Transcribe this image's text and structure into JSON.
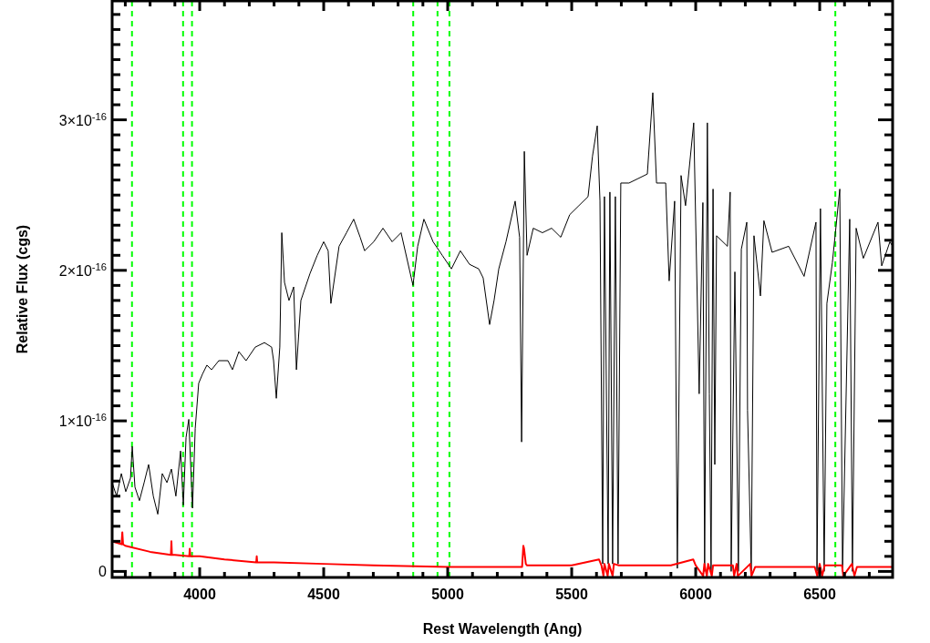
{
  "chart_data": {
    "type": "line",
    "xlabel": "Rest Wavelength (Ang)",
    "ylabel": "Relative Flux (cgs)",
    "xlim": [
      3647,
      6794
    ],
    "ylim": [
      -4e-18,
      3.79e-16
    ],
    "xticks": [
      {
        "value": 3700,
        "label": null
      },
      {
        "value": 3800,
        "label": null
      },
      {
        "value": 3900,
        "label": null
      },
      4000,
      {
        "value": 4100,
        "label": null
      },
      {
        "value": 4200,
        "label": null
      },
      {
        "value": 4300,
        "label": null
      },
      {
        "value": 4400,
        "label": null
      },
      4500,
      {
        "value": 4600,
        "label": null
      },
      {
        "value": 4700,
        "label": null
      },
      {
        "value": 4800,
        "label": null
      },
      {
        "value": 4900,
        "label": null
      },
      5000,
      {
        "value": 5100,
        "label": null
      },
      {
        "value": 5200,
        "label": null
      },
      {
        "value": 5300,
        "label": null
      },
      {
        "value": 5400,
        "label": null
      },
      5500,
      {
        "value": 5600,
        "label": null
      },
      {
        "value": 5700,
        "label": null
      },
      {
        "value": 5800,
        "label": null
      },
      {
        "value": 5900,
        "label": null
      },
      6000,
      {
        "value": 6100,
        "label": null
      },
      {
        "value": 6200,
        "label": null
      },
      {
        "value": 6300,
        "label": null
      },
      {
        "value": 6400,
        "label": null
      },
      6500,
      {
        "value": 6600,
        "label": null
      },
      {
        "value": 6700,
        "label": null
      }
    ],
    "yticks": [
      0,
      {
        "value": 1e-17,
        "label": null
      },
      {
        "value": 2e-17,
        "label": null
      },
      {
        "value": 3e-17,
        "label": null
      },
      {
        "value": 4e-17,
        "label": null
      },
      {
        "value": 5e-17,
        "label": null
      },
      {
        "value": 6e-17,
        "label": null
      },
      {
        "value": 7e-17,
        "label": null
      },
      {
        "value": 8e-17,
        "label": null
      },
      {
        "value": 9e-17,
        "label": null
      },
      {
        "value": 1e-16,
        "label": "1×10$^{-16}$"
      },
      {
        "value": 1.1e-16,
        "label": null
      },
      {
        "value": 1.2e-16,
        "label": null
      },
      {
        "value": 1.3e-16,
        "label": null
      },
      {
        "value": 1.4e-16,
        "label": null
      },
      {
        "value": 1.5e-16,
        "label": null
      },
      {
        "value": 1.6e-16,
        "label": null
      },
      {
        "value": 1.7e-16,
        "label": null
      },
      {
        "value": 1.8e-16,
        "label": null
      },
      {
        "value": 1.9e-16,
        "label": null
      },
      {
        "value": 2e-16,
        "label": "2×10$^{-16}$"
      },
      {
        "value": 2.1e-16,
        "label": null
      },
      {
        "value": 2.2e-16,
        "label": null
      },
      {
        "value": 2.3e-16,
        "label": null
      },
      {
        "value": 2.4e-16,
        "label": null
      },
      {
        "value": 2.5e-16,
        "label": null
      },
      {
        "value": 2.6e-16,
        "label": null
      },
      {
        "value": 2.7e-16,
        "label": null
      },
      {
        "value": 2.8e-16,
        "label": null
      },
      {
        "value": 2.9e-16,
        "label": null
      },
      {
        "value": 3e-16,
        "label": "3×10$^{-16}$"
      },
      {
        "value": 3.1e-16,
        "label": null
      },
      {
        "value": 3.2e-16,
        "label": null
      },
      {
        "value": 3.3e-16,
        "label": null
      },
      {
        "value": 3.4e-16,
        "label": null
      },
      {
        "value": 3.5e-16,
        "label": null
      },
      {
        "value": 3.6e-16,
        "label": null
      },
      {
        "value": 3.7e-16,
        "label": null
      }
    ],
    "grid": false,
    "series": [
      {
        "color": "#000000",
        "x": [
          3647,
          3665,
          3684,
          3702,
          3721,
          3728,
          3739,
          3757,
          3776,
          3794,
          3813,
          3831,
          3849,
          3868,
          3886,
          3904,
          3923,
          3934,
          3945,
          3956,
          3971,
          3982,
          3996,
          4011,
          4029,
          4048,
          4077,
          4114,
          4132,
          4158,
          4187,
          4224,
          4261,
          4290,
          4298,
          4309,
          4323,
          4331,
          4342,
          4360,
          4379,
          4390,
          4408,
          4445,
          4474,
          4500,
          4518,
          4529,
          4562,
          4592,
          4621,
          4647,
          4665,
          4702,
          4739,
          4776,
          4812,
          4860,
          4879,
          4904,
          4941,
          4978,
          5015,
          5051,
          5088,
          5125,
          5143,
          5169,
          5187,
          5206,
          5235,
          5272,
          5290,
          5298,
          5309,
          5320,
          5345,
          5382,
          5419,
          5456,
          5492,
          5529,
          5566,
          5584,
          5603,
          5614,
          5625,
          5632,
          5647,
          5654,
          5665,
          5676,
          5687,
          5698,
          5731,
          5768,
          5805,
          5827,
          5842,
          5879,
          5893,
          5915,
          5926,
          5941,
          5959,
          5992,
          6014,
          6029,
          6036,
          6047,
          6055,
          6062,
          6070,
          6077,
          6084,
          6128,
          6139,
          6143,
          6158,
          6172,
          6184,
          6206,
          6209,
          6224,
          6235,
          6261,
          6275,
          6308,
          6375,
          6437,
          6485,
          6489,
          6503,
          6518,
          6529,
          6551,
          6581,
          6592,
          6621,
          6632,
          6647,
          6676,
          6735,
          6750,
          6783,
          6794
        ],
        "values": [
          5.9e-17,
          5e-17,
          6.5e-17,
          5.3e-17,
          6.2e-17,
          8.3e-17,
          5.6e-17,
          4.7e-17,
          5.9e-17,
          7.1e-17,
          5e-17,
          3.8e-17,
          6.5e-17,
          5.9e-17,
          6.8e-17,
          5e-17,
          8e-17,
          4.4e-17,
          8.9e-17,
          1.01e-16,
          4.2e-17,
          9.5e-17,
          1.25e-16,
          1.31e-16,
          1.37e-16,
          1.34e-16,
          1.4e-16,
          1.4e-16,
          1.34e-16,
          1.46e-16,
          1.4e-16,
          1.49e-16,
          1.52e-16,
          1.49e-16,
          1.4e-16,
          1.15e-16,
          1.49e-16,
          2.25e-16,
          1.92e-16,
          1.8e-16,
          1.89e-16,
          1.34e-16,
          1.8e-16,
          1.98e-16,
          2.1e-16,
          2.19e-16,
          2.13e-16,
          1.78e-16,
          2.16e-16,
          2.25e-16,
          2.34e-16,
          2.22e-16,
          2.13e-16,
          2.19e-16,
          2.28e-16,
          2.19e-16,
          2.25e-16,
          1.9e-16,
          2.16e-16,
          2.34e-16,
          2.19e-16,
          2.1e-16,
          2.01e-16,
          2.13e-16,
          2.04e-16,
          2.01e-16,
          1.95e-16,
          1.64e-16,
          1.8e-16,
          2.01e-16,
          2.19e-16,
          2.46e-16,
          2.22e-16,
          8.6e-17,
          2.79e-16,
          2.1e-16,
          2.28e-16,
          2.25e-16,
          2.28e-16,
          2.22e-16,
          2.37e-16,
          2.43e-16,
          2.49e-16,
          2.76e-16,
          2.96e-16,
          2.46e-16,
          5e-18,
          2.49e-16,
          5e-18,
          2.52e-16,
          5e-18,
          2.49e-16,
          5e-18,
          2.58e-16,
          2.58e-16,
          2.61e-16,
          2.64e-16,
          3.18e-16,
          2.58e-16,
          2.58e-16,
          1.93e-16,
          2.46e-16,
          2e-18,
          2.63e-16,
          2.43e-16,
          2.98e-16,
          1.18e-16,
          2.45e-16,
          0,
          2.98e-16,
          1.18e-16,
          0,
          2.54e-16,
          7.1e-17,
          2.23e-16,
          2.16e-16,
          2.52e-16,
          0,
          1.99e-16,
          0,
          2.14e-16,
          2.32e-16,
          1.07e-16,
          0,
          2.23e-16,
          1.83e-16,
          2.33e-16,
          2.12e-16,
          2.16e-16,
          1.96e-16,
          2.32e-16,
          0,
          2.41e-16,
          0,
          1.78e-16,
          2.05e-16,
          2.54e-16,
          0,
          2.34e-16,
          0,
          2.28e-16,
          2.08e-16,
          2.32e-16,
          2.03e-16,
          2.19e-16,
          2.16e-16
        ]
      },
      {
        "color": "#ff0000",
        "x": [
          3647,
          3685,
          3688,
          3691,
          3700,
          3800,
          3884,
          3886,
          3888,
          3900,
          3958,
          3960,
          3962,
          4000,
          4100,
          4228,
          4230,
          4232,
          4300,
          4500,
          4700,
          5000,
          5300,
          5305,
          5308,
          5315,
          5320,
          5500,
          5610,
          5620,
          5628,
          5632,
          5645,
          5650,
          5665,
          5670,
          5690,
          5700,
          5900,
          5990,
          6000,
          6030,
          6035,
          6045,
          6050,
          6065,
          6070,
          6080,
          6150,
          6155,
          6165,
          6170,
          6220,
          6225,
          6240,
          6480,
          6490,
          6500,
          6510,
          6520,
          6590,
          6595,
          6630,
          6640,
          6650,
          6794
        ],
        "values": [
          2e-17,
          1.8e-17,
          2.6e-17,
          1.8e-17,
          1.7e-17,
          1.3e-17,
          1.1e-17,
          2e-17,
          1.1e-17,
          1.1e-17,
          1e-17,
          1.5e-17,
          1e-17,
          1e-17,
          8e-18,
          6e-18,
          1e-17,
          6e-18,
          6e-18,
          5e-18,
          4e-18,
          3e-18,
          3e-18,
          1.7e-17,
          1.5e-17,
          5e-18,
          4e-18,
          4e-18,
          8e-18,
          4e-18,
          -3e-18,
          5e-18,
          -3e-18,
          5e-18,
          -3e-18,
          5e-18,
          4e-18,
          4e-18,
          4e-18,
          8e-18,
          4e-18,
          -3e-18,
          5e-18,
          -3e-18,
          5e-18,
          -3e-18,
          4e-18,
          4e-18,
          4e-18,
          -3e-18,
          5e-18,
          -3e-18,
          5e-18,
          -3e-18,
          3e-18,
          3e-18,
          -3e-18,
          5e-18,
          -3e-18,
          4e-18,
          4e-18,
          -3e-18,
          5e-18,
          -3e-18,
          3e-18,
          3e-18
        ]
      }
    ],
    "ref_lines": [
      {
        "axis": "x",
        "value": 3727,
        "color": "#00ff00",
        "line_style": "dashed"
      },
      {
        "axis": "x",
        "value": 3933,
        "color": "#00ff00",
        "line_style": "dashed"
      },
      {
        "axis": "x",
        "value": 3969,
        "color": "#00ff00",
        "line_style": "dashed"
      },
      {
        "axis": "x",
        "value": 4861,
        "color": "#00ff00",
        "line_style": "dashed"
      },
      {
        "axis": "x",
        "value": 4959,
        "color": "#00ff00",
        "line_style": "dashed"
      },
      {
        "axis": "x",
        "value": 5007,
        "color": "#00ff00",
        "line_style": "dashed"
      },
      {
        "axis": "x",
        "value": 6563,
        "color": "#00ff00",
        "line_style": "dashed"
      }
    ]
  }
}
